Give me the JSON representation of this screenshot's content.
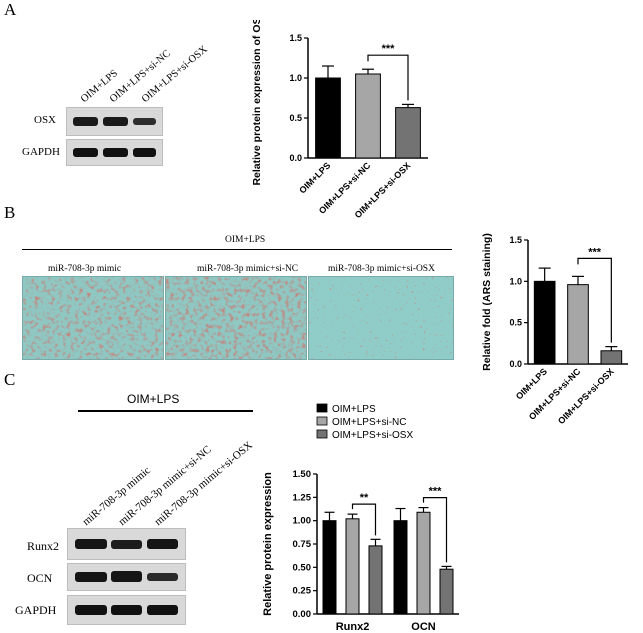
{
  "panels": {
    "A": {
      "letter": "A",
      "lanes": [
        "OIM+LPS",
        "OIM+LPS+si-NC",
        "OIM+LPS+si-OSX"
      ],
      "blots": [
        "OSX",
        "GAPDH"
      ]
    },
    "B": {
      "letter": "B",
      "header": "OIM+LPS",
      "photo_labels": [
        "miR-708-3p mimic",
        "miR-708-3p mimic+si-NC",
        "miR-708-3p mimic+si-OSX"
      ]
    },
    "C": {
      "letter": "C",
      "header": "OIM+LPS",
      "lanes": [
        "miR-708-3p mimic",
        "miR-708-3p mimic+si-NC",
        "miR-708-3p mimic+si-OSX"
      ],
      "blots": [
        "Runx2",
        "OCN",
        "GAPDH"
      ]
    }
  },
  "colors": {
    "black": "#000000",
    "light_gray": "#a6a6a6",
    "dark_gray": "#737373"
  },
  "chart_data": [
    {
      "type": "bar",
      "categories": [
        "OIM+LPS",
        "OIM+LPS+si-NC",
        "OIM+LPS+si-OSX"
      ],
      "values": [
        1.0,
        1.05,
        0.63
      ],
      "errors": [
        0.15,
        0.06,
        0.04
      ],
      "colors": [
        "#000000",
        "#a6a6a6",
        "#737373"
      ],
      "ylabel": "Relative protein expression of OSX",
      "ylim": [
        0,
        1.5
      ],
      "yticks": [
        "0.0",
        "0.5",
        "1.0",
        "1.5"
      ],
      "significance": "***"
    },
    {
      "type": "bar",
      "categories": [
        "OIM+LPS",
        "OIM+LPS+si-NC",
        "OIM+LPS+si-OSX"
      ],
      "values": [
        1.0,
        0.96,
        0.16
      ],
      "errors": [
        0.16,
        0.1,
        0.05
      ],
      "colors": [
        "#000000",
        "#a6a6a6",
        "#737373"
      ],
      "ylabel": "Relative fold (ARS staining)",
      "ylim": [
        0,
        1.5
      ],
      "yticks": [
        "0.0",
        "0.5",
        "1.0",
        "1.5"
      ],
      "significance": "***"
    },
    {
      "type": "bar",
      "categories": [
        "Runx2",
        "OCN"
      ],
      "series": [
        {
          "name": "OIM+LPS",
          "values": [
            1.0,
            1.0
          ],
          "errors": [
            0.09,
            0.13
          ],
          "color": "#000000"
        },
        {
          "name": "OIM+LPS+si-NC",
          "values": [
            1.02,
            1.09
          ],
          "errors": [
            0.05,
            0.05
          ],
          "color": "#a6a6a6"
        },
        {
          "name": "OIM+LPS+si-OSX",
          "values": [
            0.73,
            0.48
          ],
          "errors": [
            0.07,
            0.03
          ],
          "color": "#737373"
        }
      ],
      "ylabel": "Relative protein expression",
      "ylim": [
        0,
        1.5
      ],
      "yticks": [
        "0.00",
        "0.25",
        "0.50",
        "0.75",
        "1.00",
        "1.25",
        "1.50"
      ],
      "significance": [
        "**",
        "***"
      ]
    }
  ]
}
